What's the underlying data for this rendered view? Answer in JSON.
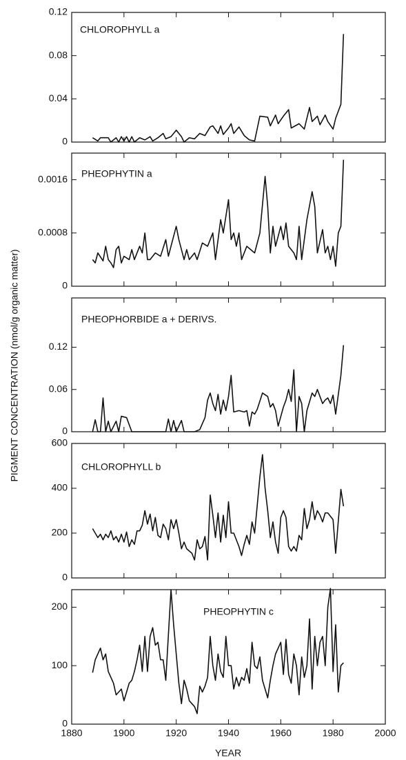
{
  "chart_data": [
    {
      "type": "line",
      "title": "CHLOROPHYLL a",
      "xlim": [
        1880,
        2000
      ],
      "ylim": [
        0,
        0.12
      ],
      "yticks": [
        0,
        0.04,
        0.08,
        0.12
      ],
      "color": "#111111",
      "x": [
        1888,
        1890,
        1891,
        1894,
        1895,
        1897,
        1898,
        1899,
        1900,
        1901,
        1902,
        1903,
        1904,
        1906,
        1908,
        1910,
        1911,
        1913,
        1915,
        1916,
        1918,
        1920,
        1922,
        1923,
        1925,
        1927,
        1929,
        1931,
        1933,
        1934,
        1936,
        1937,
        1938,
        1940,
        1941,
        1942,
        1944,
        1946,
        1948,
        1950,
        1952,
        1955,
        1956,
        1958,
        1959,
        1961,
        1962,
        1963,
        1964,
        1967,
        1969,
        1971,
        1972,
        1974,
        1975,
        1977,
        1978,
        1980,
        1981,
        1983,
        1984
      ],
      "values": [
        0.004,
        0.001,
        0.004,
        0.004,
        0,
        0.004,
        0,
        0.005,
        0.001,
        0.005,
        0,
        0.005,
        0,
        0.004,
        0.002,
        0.005,
        0.001,
        0.004,
        0.008,
        0.003,
        0.005,
        0.011,
        0.005,
        0,
        0.004,
        0.003,
        0.008,
        0.006,
        0.014,
        0.015,
        0.008,
        0.015,
        0.007,
        0.013,
        0.017,
        0.008,
        0.014,
        0.006,
        0.002,
        0.001,
        0.024,
        0.023,
        0.015,
        0.025,
        0.017,
        0.024,
        0.027,
        0.03,
        0.013,
        0.017,
        0.012,
        0.032,
        0.019,
        0.024,
        0.016,
        0.025,
        0.019,
        0.012,
        0.022,
        0.035,
        0.1
      ]
    },
    {
      "type": "line",
      "title": "PHEOPHYTIN a",
      "xlim": [
        1880,
        2000
      ],
      "ylim": [
        0,
        0.002
      ],
      "yticks": [
        0,
        0.0008,
        0.0016
      ],
      "color": "#111111",
      "x": [
        1888,
        1889,
        1890,
        1892,
        1893,
        1894,
        1895,
        1896,
        1897,
        1898,
        1899,
        1900,
        1902,
        1903,
        1904,
        1906,
        1907,
        1908,
        1909,
        1910,
        1912,
        1914,
        1916,
        1917,
        1918,
        1920,
        1921,
        1923,
        1924,
        1925,
        1927,
        1928,
        1930,
        1932,
        1934,
        1935,
        1937,
        1938,
        1940,
        1941,
        1942,
        1943,
        1944,
        1945,
        1947,
        1950,
        1952,
        1954,
        1955,
        1956,
        1957,
        1958,
        1960,
        1961,
        1962,
        1963,
        1965,
        1966,
        1967,
        1968,
        1970,
        1972,
        1973,
        1974,
        1976,
        1977,
        1978,
        1979,
        1980,
        1981,
        1982,
        1983,
        1984
      ],
      "values": [
        0.0004,
        0.00035,
        0.0005,
        0.00038,
        0.0006,
        0.0004,
        0.00035,
        0.00028,
        0.00055,
        0.0006,
        0.00035,
        0.00045,
        0.0004,
        0.00055,
        0.0004,
        0.0006,
        0.0005,
        0.0008,
        0.0004,
        0.0004,
        0.0005,
        0.00045,
        0.0007,
        0.00045,
        0.0006,
        0.0009,
        0.0007,
        0.0004,
        0.00055,
        0.0004,
        0.0005,
        0.0004,
        0.00065,
        0.0006,
        0.0008,
        0.0004,
        0.001,
        0.0008,
        0.0013,
        0.0007,
        0.0008,
        0.0006,
        0.0008,
        0.0004,
        0.0006,
        0.0005,
        0.0008,
        0.00165,
        0.0012,
        0.0005,
        0.0009,
        0.0006,
        0.0009,
        0.0007,
        0.00095,
        0.0006,
        0.0005,
        0.0004,
        0.0009,
        0.0004,
        0.001,
        0.00142,
        0.0012,
        0.0005,
        0.00085,
        0.0005,
        0.0006,
        0.0004,
        0.0006,
        0.0003,
        0.0008,
        0.0009,
        0.0019
      ]
    },
    {
      "type": "line",
      "title": "PHEOPHORBIDE a + DERIVS.",
      "ylabel": "PIGMENT CONCENTRATION (nmol/g organic matter)",
      "xlim": [
        1880,
        2000
      ],
      "ylim": [
        0,
        0.19
      ],
      "yticks": [
        0,
        0.06,
        0.12
      ],
      "color": "#111111",
      "x": [
        1888,
        1889,
        1890,
        1891,
        1892,
        1893,
        1894,
        1895,
        1897,
        1898,
        1899,
        1901,
        1903,
        1916,
        1917,
        1918,
        1919,
        1920,
        1922,
        1923,
        1927,
        1929,
        1931,
        1932,
        1933,
        1934,
        1935,
        1936,
        1937,
        1938,
        1939,
        1940,
        1941,
        1942,
        1944,
        1946,
        1947,
        1948,
        1949,
        1950,
        1951,
        1953,
        1955,
        1956,
        1957,
        1958,
        1959,
        1961,
        1962,
        1963,
        1964,
        1965,
        1966,
        1967,
        1968,
        1969,
        1970,
        1972,
        1973,
        1974,
        1975,
        1976,
        1977,
        1978,
        1979,
        1980,
        1981,
        1983,
        1984
      ],
      "values": [
        0,
        0.017,
        0,
        0,
        0.048,
        0,
        0.015,
        0,
        0.015,
        0,
        0.022,
        0.02,
        0,
        0,
        0.018,
        0,
        0.016,
        0,
        0.016,
        0,
        0,
        0.003,
        0.02,
        0.045,
        0.055,
        0.04,
        0.03,
        0.053,
        0.025,
        0.045,
        0.03,
        0.05,
        0.08,
        0.028,
        0.03,
        0.028,
        0.03,
        0.008,
        0.028,
        0.025,
        0.032,
        0.055,
        0.05,
        0.035,
        0.04,
        0.03,
        0.008,
        0.035,
        0.045,
        0.06,
        0.043,
        0.088,
        0,
        0.05,
        0.04,
        0,
        0.03,
        0.055,
        0.05,
        0.06,
        0.05,
        0.04,
        0.045,
        0.048,
        0.04,
        0.052,
        0.025,
        0.08,
        0.123
      ]
    },
    {
      "type": "line",
      "title": "CHLOROPHYLL b",
      "xlim": [
        1880,
        2000
      ],
      "ylim": [
        0,
        600
      ],
      "yticks": [
        0,
        200,
        400,
        600
      ],
      "color": "#111111",
      "x": [
        1888,
        1890,
        1891,
        1892,
        1893,
        1894,
        1895,
        1896,
        1897,
        1898,
        1899,
        1900,
        1901,
        1902,
        1903,
        1904,
        1905,
        1906,
        1907,
        1908,
        1909,
        1910,
        1911,
        1912,
        1913,
        1914,
        1915,
        1916,
        1917,
        1918,
        1919,
        1920,
        1921,
        1922,
        1923,
        1924,
        1925,
        1926,
        1927,
        1928,
        1929,
        1930,
        1931,
        1932,
        1933,
        1934,
        1935,
        1936,
        1937,
        1938,
        1939,
        1940,
        1941,
        1942,
        1943,
        1944,
        1945,
        1946,
        1947,
        1948,
        1949,
        1950,
        1952,
        1953,
        1954,
        1955,
        1956,
        1957,
        1958,
        1959,
        1960,
        1961,
        1962,
        1963,
        1964,
        1965,
        1966,
        1967,
        1968,
        1969,
        1970,
        1971,
        1972,
        1973,
        1974,
        1975,
        1976,
        1977,
        1978,
        1980,
        1981,
        1983,
        1984
      ],
      "values": [
        220,
        180,
        195,
        170,
        195,
        180,
        210,
        170,
        185,
        160,
        195,
        160,
        205,
        140,
        170,
        150,
        210,
        210,
        235,
        300,
        240,
        285,
        210,
        270,
        190,
        180,
        240,
        220,
        170,
        260,
        220,
        260,
        200,
        130,
        160,
        130,
        120,
        110,
        80,
        170,
        130,
        140,
        185,
        80,
        370,
        280,
        180,
        290,
        160,
        280,
        180,
        340,
        200,
        200,
        170,
        140,
        100,
        150,
        190,
        150,
        250,
        200,
        450,
        550,
        400,
        300,
        180,
        250,
        160,
        110,
        270,
        300,
        270,
        140,
        120,
        140,
        120,
        190,
        170,
        310,
        220,
        260,
        340,
        260,
        300,
        280,
        250,
        290,
        290,
        260,
        110,
        395,
        320
      ]
    },
    {
      "type": "line",
      "title": "PHEOPHYTIN c",
      "xlabel": "YEAR",
      "xlim": [
        1880,
        2000
      ],
      "xticks": [
        1880,
        1900,
        1920,
        1940,
        1960,
        1980,
        2000
      ],
      "ylim": [
        0,
        230
      ],
      "yticks": [
        0,
        100,
        200
      ],
      "color": "#111111",
      "x": [
        1888,
        1889,
        1891,
        1892,
        1893,
        1894,
        1895,
        1896,
        1897,
        1899,
        1900,
        1901,
        1902,
        1903,
        1904,
        1905,
        1906,
        1907,
        1908,
        1909,
        1910,
        1911,
        1912,
        1913,
        1914,
        1915,
        1916,
        1918,
        1919,
        1920,
        1921,
        1922,
        1923,
        1924,
        1925,
        1926,
        1927,
        1928,
        1929,
        1930,
        1931,
        1932,
        1933,
        1934,
        1935,
        1936,
        1937,
        1938,
        1939,
        1940,
        1941,
        1942,
        1943,
        1944,
        1945,
        1946,
        1947,
        1948,
        1949,
        1950,
        1951,
        1952,
        1953,
        1954,
        1955,
        1956,
        1957,
        1958,
        1959,
        1960,
        1961,
        1962,
        1963,
        1964,
        1965,
        1966,
        1967,
        1968,
        1969,
        1970,
        1971,
        1972,
        1973,
        1974,
        1975,
        1976,
        1977,
        1978,
        1979,
        1980,
        1981,
        1982,
        1983,
        1984
      ],
      "values": [
        88,
        110,
        130,
        110,
        120,
        90,
        80,
        70,
        50,
        60,
        40,
        55,
        70,
        75,
        90,
        110,
        135,
        90,
        150,
        90,
        150,
        165,
        135,
        140,
        110,
        110,
        75,
        230,
        170,
        120,
        70,
        35,
        75,
        60,
        40,
        35,
        30,
        18,
        65,
        55,
        65,
        80,
        150,
        100,
        75,
        120,
        90,
        80,
        150,
        100,
        100,
        60,
        80,
        65,
        80,
        75,
        95,
        70,
        140,
        100,
        95,
        115,
        75,
        60,
        45,
        75,
        100,
        120,
        130,
        140,
        85,
        145,
        85,
        70,
        120,
        100,
        50,
        115,
        80,
        100,
        180,
        60,
        150,
        100,
        140,
        150,
        100,
        200,
        232,
        90,
        170,
        55,
        100,
        105
      ]
    }
  ]
}
